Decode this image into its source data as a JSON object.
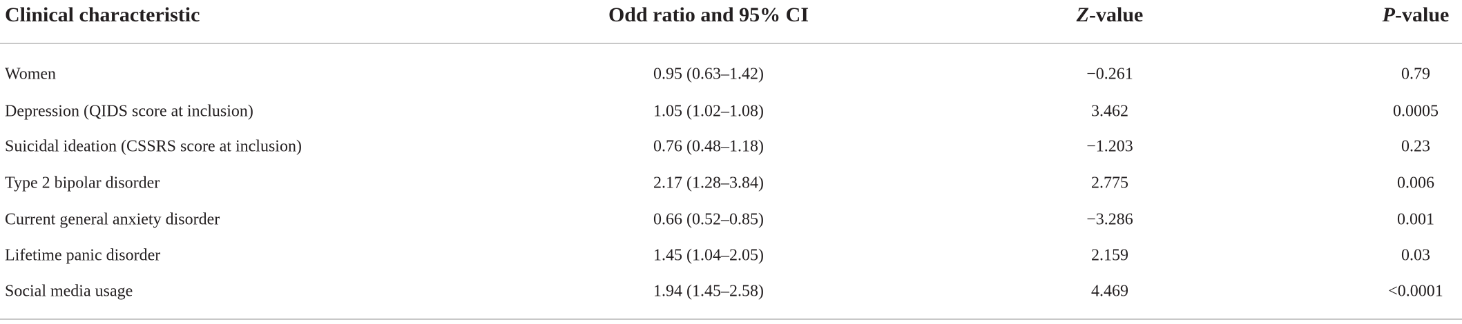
{
  "table": {
    "header": [
      "Clinical characteristic",
      "Odd ratio and 95% CI",
      {
        "italic": "Z",
        "text": "-value"
      },
      {
        "italic": "P",
        "text": "-value"
      }
    ],
    "rows": [
      [
        "Women",
        "0.95 (0.63–1.42)",
        "−0.261",
        "0.79"
      ],
      [
        "Depression (QIDS score at inclusion)",
        "1.05 (1.02–1.08)",
        "3.462",
        "0.0005"
      ],
      [
        "Suicidal ideation (CSSRS score at inclusion)",
        "0.76 (0.48–1.18)",
        "−1.203",
        "0.23"
      ],
      [
        "Type 2 bipolar disorder",
        "2.17 (1.28–3.84)",
        "2.775",
        "0.006"
      ],
      [
        "Current general anxiety disorder",
        "0.66 (0.52–0.85)",
        "−3.286",
        "0.001"
      ],
      [
        "Lifetime panic disorder",
        "1.45 (1.04–2.05)",
        "2.159",
        "0.03"
      ],
      [
        "Social media usage",
        "1.94 (1.45–2.58)",
        "4.469",
        "<0.0001"
      ]
    ]
  }
}
